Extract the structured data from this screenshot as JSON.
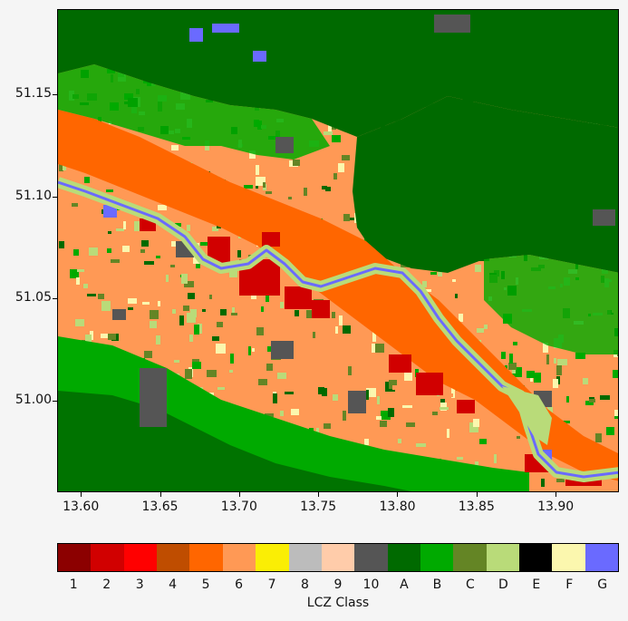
{
  "chart_data": {
    "type": "heatmap",
    "map_kind": "Local Climate Zone classification raster",
    "x_axis": {
      "ticks": [
        13.6,
        13.65,
        13.7,
        13.75,
        13.8,
        13.85,
        13.9
      ],
      "tick_labels": [
        "13.60",
        "13.65",
        "13.70",
        "13.75",
        "13.80",
        "13.85",
        "13.90"
      ],
      "range": [
        13.585,
        13.94
      ]
    },
    "y_axis": {
      "ticks": [
        51.15,
        51.1,
        51.05,
        51.0
      ],
      "tick_labels": [
        "51.15",
        "51.10",
        "51.05",
        "51.00"
      ],
      "range": [
        50.955,
        51.192
      ]
    },
    "colorbar": {
      "title": "LCZ Class",
      "classes": [
        {
          "label": "1",
          "color": "#8c0000"
        },
        {
          "label": "2",
          "color": "#d10000"
        },
        {
          "label": "3",
          "color": "#ff0000"
        },
        {
          "label": "4",
          "color": "#bf4d00"
        },
        {
          "label": "5",
          "color": "#ff6600"
        },
        {
          "label": "6",
          "color": "#ff9955"
        },
        {
          "label": "7",
          "color": "#faee05"
        },
        {
          "label": "8",
          "color": "#bcbcbc"
        },
        {
          "label": "9",
          "color": "#ffccaa"
        },
        {
          "label": "10",
          "color": "#555555"
        },
        {
          "label": "A",
          "color": "#006a00"
        },
        {
          "label": "B",
          "color": "#00aa00"
        },
        {
          "label": "C",
          "color": "#648525"
        },
        {
          "label": "D",
          "color": "#b9db79"
        },
        {
          "label": "E",
          "color": "#000000"
        },
        {
          "label": "F",
          "color": "#fbf7ae"
        },
        {
          "label": "G",
          "color": "#6a6aff"
        }
      ]
    }
  }
}
